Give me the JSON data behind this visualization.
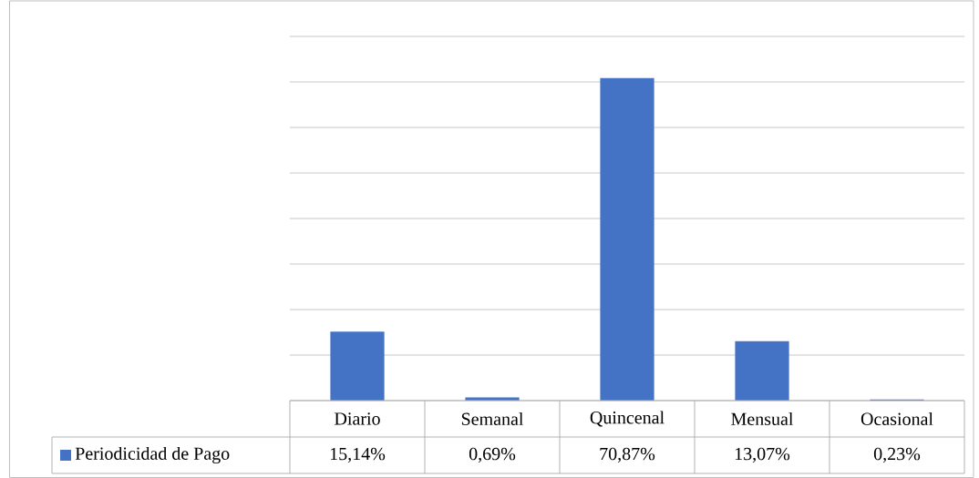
{
  "chart_data": {
    "type": "bar",
    "categories": [
      "Diario",
      "Semanal",
      "Quincenal",
      "Mensual",
      "Ocasional"
    ],
    "series": [
      {
        "name": "Periodicidad de Pago",
        "color": "#4472c4",
        "values": [
          15.14,
          0.69,
          70.87,
          13.07,
          0.23
        ],
        "value_labels": [
          "15,14%",
          "0,69%",
          "70,87%",
          "13,07%",
          "0,23%"
        ]
      }
    ],
    "ylim": [
      0,
      80
    ],
    "yticks": [
      {
        "value": 0,
        "label": null
      },
      {
        "value": 10,
        "label": null
      },
      {
        "value": 20,
        "label": null
      },
      {
        "value": 30,
        "label": null
      },
      {
        "value": 40,
        "label": null
      },
      {
        "value": 50,
        "label": null
      },
      {
        "value": 60,
        "label": null
      },
      {
        "value": 70,
        "label": null
      },
      {
        "value": 80,
        "label": null
      }
    ],
    "grid": "y",
    "tick_labels": "x",
    "legend": "bottom left"
  }
}
